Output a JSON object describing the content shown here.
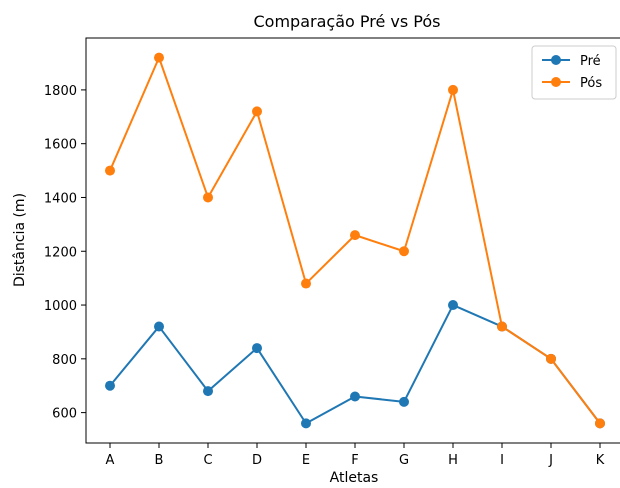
{
  "chart_data": {
    "type": "line",
    "title": "Comparação Pré vs Pós",
    "xlabel": "Atletas",
    "ylabel": "Distância (m)",
    "categories": [
      "A",
      "B",
      "C",
      "D",
      "E",
      "F",
      "G",
      "H",
      "I",
      "J",
      "K"
    ],
    "series": [
      {
        "name": "Pré",
        "color": "#1f77b4",
        "values": [
          700,
          920,
          680,
          840,
          560,
          660,
          640,
          1000,
          920,
          800,
          560
        ]
      },
      {
        "name": "Pós",
        "color": "#ff7f0e",
        "values": [
          1500,
          1920,
          1400,
          1720,
          1080,
          1260,
          1200,
          1800,
          920,
          800,
          560
        ]
      }
    ],
    "ylim": [
      487,
      1993
    ],
    "yticks": [
      600,
      800,
      1000,
      1200,
      1400,
      1600,
      1800
    ],
    "grid": false,
    "legend": "top-right"
  }
}
